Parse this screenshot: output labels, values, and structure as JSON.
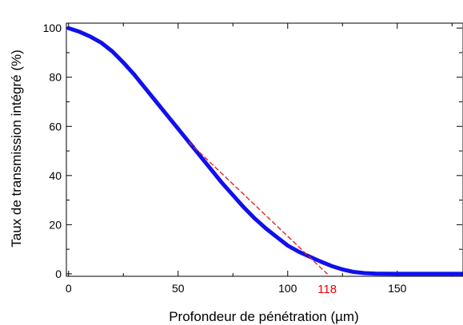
{
  "chart_data": {
    "type": "line",
    "xlabel": "Profondeur de pénétration (µm)",
    "ylabel": "Taux de transmission intégré (%)",
    "xlim": [
      -1,
      180
    ],
    "ylim": [
      -1,
      102
    ],
    "x_ticks": [
      0,
      50,
      100,
      150
    ],
    "y_ticks": [
      0,
      20,
      40,
      60,
      80,
      100
    ],
    "grid": false,
    "series": [
      {
        "color": "#1010ee",
        "style": "solid",
        "points": [
          [
            0,
            100
          ],
          [
            5,
            98.5
          ],
          [
            10,
            96.5
          ],
          [
            15,
            94
          ],
          [
            20,
            90.5
          ],
          [
            25,
            86
          ],
          [
            30,
            81
          ],
          [
            35,
            75.5
          ],
          [
            40,
            70
          ],
          [
            45,
            64.5
          ],
          [
            50,
            59
          ],
          [
            55,
            53.5
          ],
          [
            60,
            48
          ],
          [
            65,
            42.5
          ],
          [
            70,
            37
          ],
          [
            75,
            32
          ],
          [
            80,
            27
          ],
          [
            85,
            22.5
          ],
          [
            90,
            18.5
          ],
          [
            95,
            15
          ],
          [
            100,
            11.5
          ],
          [
            105,
            9
          ],
          [
            110,
            7
          ],
          [
            115,
            5
          ],
          [
            120,
            3.2
          ],
          [
            125,
            1.8
          ],
          [
            130,
            0.8
          ],
          [
            135,
            0.3
          ],
          [
            140,
            0.1
          ],
          [
            150,
            0
          ],
          [
            160,
            0
          ],
          [
            170,
            0
          ],
          [
            180,
            0
          ]
        ]
      },
      {
        "color": "#ee2020",
        "style": "dashed",
        "points": [
          [
            55,
            53.5
          ],
          [
            118,
            0
          ]
        ]
      }
    ],
    "annotations": [
      {
        "text": "118",
        "x": 118,
        "color": "#ee0000"
      }
    ]
  }
}
